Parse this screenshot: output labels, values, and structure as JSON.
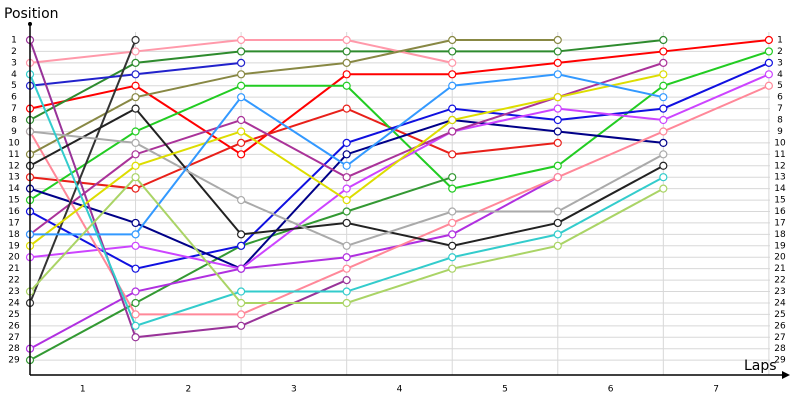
{
  "chart_data": {
    "type": "line",
    "y_title": "Position",
    "x_title": "Laps",
    "x": [
      0,
      1,
      2,
      3,
      4,
      5,
      6,
      7
    ],
    "xlim": [
      0,
      7.2
    ],
    "xticks": [
      {
        "value": 0.5,
        "label": "1"
      },
      {
        "value": 1.5,
        "label": "2"
      },
      {
        "value": 2.5,
        "label": "3"
      },
      {
        "value": 3.5,
        "label": "4"
      },
      {
        "value": 4.5,
        "label": "5"
      },
      {
        "value": 5.5,
        "label": "6"
      },
      {
        "value": 6.5,
        "label": "7"
      }
    ],
    "ylim": [
      30.3,
      0.3
    ],
    "yticks": [
      1,
      2,
      3,
      4,
      5,
      6,
      7,
      8,
      9,
      10,
      11,
      12,
      13,
      14,
      15,
      16,
      17,
      18,
      19,
      20,
      21,
      22,
      23,
      24,
      25,
      26,
      27,
      28,
      29
    ],
    "grid": true,
    "series": [
      {
        "color": "#ff0000",
        "values": [
          7,
          5,
          11,
          4,
          4,
          3,
          2,
          1
        ]
      },
      {
        "color": "#e8201a",
        "values": [
          13,
          14,
          10,
          7,
          11,
          10,
          null,
          null
        ]
      },
      {
        "color": "#22cc22",
        "values": [
          15,
          9,
          5,
          5,
          14,
          12,
          5,
          2
        ]
      },
      {
        "color": "#2e8b2e",
        "values": [
          8,
          3,
          2,
          2,
          2,
          2,
          1,
          null
        ]
      },
      {
        "color": "#339933",
        "values": [
          29,
          24,
          19,
          16,
          13,
          null,
          null,
          null
        ]
      },
      {
        "color": "#2222cc",
        "values": [
          5,
          4,
          3,
          null,
          null,
          null,
          null,
          null
        ]
      },
      {
        "color": "#1010e0",
        "values": [
          16,
          21,
          19,
          10,
          7,
          8,
          7,
          3
        ]
      },
      {
        "color": "#000088",
        "values": [
          14,
          17,
          21,
          11,
          8,
          9,
          10,
          null
        ]
      },
      {
        "color": "#cc44ff",
        "values": [
          20,
          19,
          21,
          14,
          9,
          7,
          8,
          4
        ]
      },
      {
        "color": "#b030e0",
        "values": [
          28,
          23,
          21,
          20,
          18,
          13,
          null,
          null
        ]
      },
      {
        "color": "#ff99aa",
        "values": [
          3,
          2,
          1,
          1,
          3,
          null,
          null,
          null
        ]
      },
      {
        "color": "#ff8899",
        "values": [
          9,
          25,
          25,
          21,
          17,
          13,
          9,
          5
        ]
      },
      {
        "color": "#993399",
        "values": [
          1,
          27,
          26,
          22,
          null,
          null,
          null,
          null
        ]
      },
      {
        "color": "#aa3399",
        "values": [
          18,
          11,
          8,
          13,
          9,
          6,
          3,
          null
        ]
      },
      {
        "color": "#888844",
        "values": [
          11,
          6,
          4,
          3,
          1,
          1,
          null,
          null
        ]
      },
      {
        "color": "#333333",
        "values": [
          24,
          1,
          null,
          null,
          null,
          null,
          null,
          null
        ]
      },
      {
        "color": "#222222",
        "values": [
          12,
          7,
          18,
          17,
          19,
          17,
          12,
          null
        ]
      },
      {
        "color": "#aaaaaa",
        "values": [
          9,
          10,
          15,
          19,
          16,
          16,
          11,
          null
        ]
      },
      {
        "color": "#dddd00",
        "values": [
          19,
          12,
          9,
          15,
          8,
          6,
          4,
          null
        ]
      },
      {
        "color": "#3399ff",
        "values": [
          18,
          18,
          6,
          12,
          5,
          4,
          6,
          null
        ]
      },
      {
        "color": "#33cccc",
        "values": [
          4,
          26,
          23,
          23,
          20,
          18,
          13,
          null
        ]
      },
      {
        "color": "#aad466",
        "values": [
          23,
          13,
          24,
          24,
          21,
          19,
          14,
          null
        ]
      }
    ]
  }
}
